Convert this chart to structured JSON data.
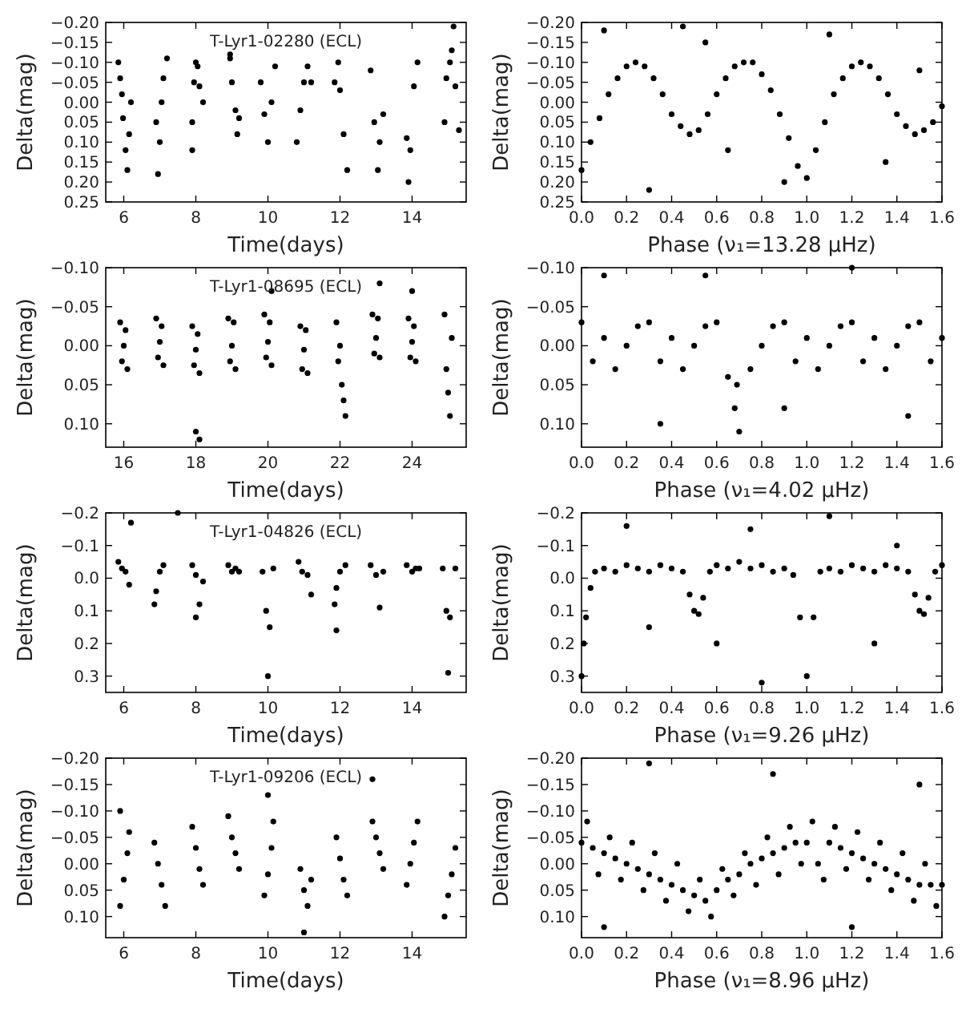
{
  "chart_data": [
    {
      "type": "scatter",
      "title": "T-Lyr1-02280 (ECL)",
      "xlabel": "Time(days)",
      "ylabel": "Delta(mag)",
      "marker": "circle",
      "xlim": [
        5.5,
        15.5
      ],
      "xticks": [
        6,
        8,
        10,
        12,
        14
      ],
      "ylim": [
        0.25,
        -0.2
      ],
      "yticks": [
        {
          "value": -0.2,
          "label": "−0.20"
        },
        {
          "value": -0.15,
          "label": "−0.15"
        },
        {
          "value": -0.1,
          "label": "−0.10"
        },
        {
          "value": -0.05,
          "label": "−0.05"
        },
        {
          "value": 0,
          "label": "0.00"
        },
        {
          "value": 0.05,
          "label": "0.05"
        },
        {
          "value": 0.1,
          "label": "0.10"
        },
        {
          "value": 0.15,
          "label": "0.15"
        },
        {
          "value": 0.2,
          "label": "0.20"
        },
        {
          "value": 0.25,
          "label": "0.25"
        }
      ],
      "series": [
        {
          "color": "#000000",
          "x": [
            5.85,
            5.9,
            5.95,
            5.98,
            6.05,
            6.1,
            6.15,
            6.2,
            6.9,
            6.95,
            7.0,
            7.05,
            7.1,
            7.2,
            7.9,
            7.95,
            8.0,
            8.05,
            8.1,
            8.2,
            8.95,
            9.0,
            9.1,
            9.15,
            9.2,
            9.8,
            9.9,
            10.0,
            10.1,
            10.2,
            10.8,
            10.9,
            11.0,
            11.1,
            11.2,
            11.85,
            11.95,
            12.0,
            12.1,
            12.2,
            12.85,
            12.95,
            13.05,
            13.1,
            13.2,
            13.85,
            13.9,
            13.95,
            14.05,
            14.15,
            14.9,
            14.95,
            15.05,
            15.1,
            15.2,
            15.3,
            7.9,
            8.95,
            15.15
          ],
          "values": [
            -0.1,
            -0.06,
            -0.02,
            0.04,
            0.12,
            0.17,
            0.08,
            0.0,
            0.05,
            0.18,
            0.1,
            0.0,
            -0.06,
            -0.11,
            0.05,
            -0.05,
            -0.1,
            -0.09,
            -0.04,
            0.0,
            -0.11,
            -0.05,
            0.02,
            0.08,
            0.04,
            -0.05,
            0.03,
            0.1,
            0.0,
            -0.09,
            0.1,
            0.02,
            -0.05,
            -0.09,
            -0.05,
            -0.05,
            -0.1,
            -0.03,
            0.08,
            0.17,
            -0.08,
            0.05,
            0.17,
            0.1,
            0.03,
            0.09,
            0.2,
            0.12,
            -0.04,
            -0.1,
            0.05,
            -0.06,
            -0.1,
            -0.13,
            -0.04,
            0.07,
            0.12,
            -0.12,
            -0.19
          ]
        }
      ]
    },
    {
      "type": "scatter",
      "xlabel": "Phase (ν₁=13.28 μHz)",
      "ylabel": "Delta(mag)",
      "marker": "circle",
      "xlim": [
        0,
        1.6
      ],
      "xticks": [
        {
          "value": 0,
          "label": "0.0"
        },
        {
          "value": 0.2,
          "label": "0.2"
        },
        {
          "value": 0.4,
          "label": "0.4"
        },
        {
          "value": 0.6,
          "label": "0.6"
        },
        {
          "value": 0.8,
          "label": "0.8"
        },
        {
          "value": 1,
          "label": "1.0"
        },
        {
          "value": 1.2,
          "label": "1.2"
        },
        {
          "value": 1.4,
          "label": "1.4"
        },
        {
          "value": 1.6,
          "label": "1.6"
        }
      ],
      "ylim": [
        0.25,
        -0.2
      ],
      "yticks": [
        {
          "value": -0.2,
          "label": "−0.20"
        },
        {
          "value": -0.15,
          "label": "−0.15"
        },
        {
          "value": -0.1,
          "label": "−0.10"
        },
        {
          "value": -0.05,
          "label": "−0.05"
        },
        {
          "value": 0,
          "label": "0.00"
        },
        {
          "value": 0.05,
          "label": "0.05"
        },
        {
          "value": 0.1,
          "label": "0.10"
        },
        {
          "value": 0.15,
          "label": "0.15"
        },
        {
          "value": 0.2,
          "label": "0.20"
        },
        {
          "value": 0.25,
          "label": "0.25"
        }
      ],
      "series": [
        {
          "color": "#000000",
          "x": [
            0,
            0.04,
            0.08,
            0.12,
            0.16,
            0.2,
            0.24,
            0.28,
            0.32,
            0.36,
            0.4,
            0.44,
            0.48,
            0.52,
            0.56,
            0.6,
            0.64,
            0.68,
            0.72,
            0.76,
            0.8,
            0.84,
            0.88,
            0.92,
            0.96,
            1,
            1.04,
            1.08,
            1.12,
            1.16,
            1.2,
            1.24,
            1.28,
            1.32,
            1.36,
            1.4,
            1.44,
            1.48,
            1.52,
            1.56,
            1.6,
            0.1,
            0.3,
            0.45,
            0.55,
            0.65,
            0.9,
            1.1,
            1.35,
            1.5
          ],
          "values": [
            0.17,
            0.1,
            0.04,
            -0.02,
            -0.06,
            -0.09,
            -0.1,
            -0.09,
            -0.06,
            -0.02,
            0.03,
            0.06,
            0.08,
            0.07,
            0.03,
            -0.02,
            -0.06,
            -0.09,
            -0.1,
            -0.1,
            -0.07,
            -0.03,
            0.03,
            0.09,
            0.16,
            0.19,
            0.12,
            0.05,
            -0.02,
            -0.06,
            -0.09,
            -0.1,
            -0.09,
            -0.06,
            -0.02,
            0.03,
            0.06,
            0.08,
            0.07,
            0.05,
            0.01,
            -0.18,
            0.22,
            -0.19,
            -0.15,
            0.12,
            0.2,
            -0.17,
            0.15,
            -0.08
          ]
        }
      ]
    },
    {
      "type": "scatter",
      "title": "T-Lyr1-08695 (ECL)",
      "xlabel": "Time(days)",
      "ylabel": "Delta(mag)",
      "marker": "circle",
      "xlim": [
        15.5,
        25.5
      ],
      "xticks": [
        16,
        18,
        20,
        22,
        24
      ],
      "ylim": [
        0.13,
        -0.1
      ],
      "yticks": [
        {
          "value": -0.1,
          "label": "−0.10"
        },
        {
          "value": -0.05,
          "label": "−0.05"
        },
        {
          "value": 0,
          "label": "0.00"
        },
        {
          "value": 0.05,
          "label": "0.05"
        },
        {
          "value": 0.1,
          "label": "0.10"
        }
      ],
      "series": [
        {
          "color": "#000000",
          "x": [
            15.9,
            15.95,
            16,
            16.05,
            16.1,
            16.9,
            16.95,
            17,
            17.05,
            17.1,
            17.9,
            17.95,
            18,
            18.05,
            18.1,
            18.9,
            18.95,
            19,
            19.05,
            19.1,
            19.9,
            19.95,
            20,
            20.05,
            20.1,
            20.9,
            20.95,
            21,
            21.05,
            21.1,
            21.9,
            21.95,
            22,
            22.05,
            22.1,
            22.15,
            22.9,
            22.95,
            23,
            23.05,
            23.1,
            23.9,
            23.95,
            24,
            24.05,
            24.1,
            24.9,
            24.95,
            25,
            25.05,
            25.1,
            18,
            18.1,
            20.1,
            23.1,
            24
          ],
          "values": [
            -0.03,
            0.02,
            0.0,
            -0.02,
            0.03,
            -0.035,
            0.015,
            -0.005,
            -0.025,
            0.025,
            -0.025,
            0.025,
            0.005,
            -0.015,
            0.035,
            -0.035,
            0.02,
            0.0,
            -0.03,
            0.03,
            -0.04,
            0.015,
            -0.005,
            -0.03,
            0.025,
            -0.025,
            0.03,
            0.005,
            -0.02,
            0.035,
            -0.03,
            0.02,
            0.0,
            0.05,
            0.07,
            0.09,
            -0.04,
            0.01,
            -0.01,
            -0.035,
            0.015,
            -0.035,
            0.015,
            -0.005,
            -0.025,
            0.02,
            -0.04,
            0.03,
            0.06,
            0.09,
            -0.01,
            0.11,
            0.12,
            -0.07,
            -0.08,
            -0.07
          ]
        }
      ]
    },
    {
      "type": "scatter",
      "xlabel": "Phase (ν₁=4.02 μHz)",
      "ylabel": "Delta(mag)",
      "marker": "circle",
      "xlim": [
        0,
        1.6
      ],
      "xticks": [
        {
          "value": 0,
          "label": "0.0"
        },
        {
          "value": 0.2,
          "label": "0.2"
        },
        {
          "value": 0.4,
          "label": "0.4"
        },
        {
          "value": 0.6,
          "label": "0.6"
        },
        {
          "value": 0.8,
          "label": "0.8"
        },
        {
          "value": 1,
          "label": "1.0"
        },
        {
          "value": 1.2,
          "label": "1.2"
        },
        {
          "value": 1.4,
          "label": "1.4"
        },
        {
          "value": 1.6,
          "label": "1.6"
        }
      ],
      "ylim": [
        0.13,
        -0.1
      ],
      "yticks": [
        {
          "value": -0.1,
          "label": "−0.10"
        },
        {
          "value": -0.05,
          "label": "−0.05"
        },
        {
          "value": 0,
          "label": "0.00"
        },
        {
          "value": 0.05,
          "label": "0.05"
        },
        {
          "value": 0.1,
          "label": "0.10"
        }
      ],
      "series": [
        {
          "color": "#000000",
          "x": [
            0,
            0.05,
            0.1,
            0.15,
            0.2,
            0.25,
            0.3,
            0.35,
            0.4,
            0.45,
            0.5,
            0.55,
            0.6,
            0.65,
            0.7,
            0.75,
            0.8,
            0.85,
            0.9,
            0.95,
            1,
            1.05,
            1.1,
            1.15,
            1.2,
            1.25,
            1.3,
            1.35,
            1.4,
            1.45,
            1.5,
            1.55,
            1.6,
            0.68,
            0.69,
            0.1,
            0.35,
            0.55,
            0.9,
            1.2,
            1.45
          ],
          "values": [
            -0.03,
            0.02,
            -0.01,
            0.03,
            0.0,
            -0.025,
            -0.03,
            0.02,
            -0.01,
            0.03,
            0.0,
            -0.025,
            -0.03,
            0.04,
            0.11,
            0.03,
            0.0,
            -0.025,
            -0.03,
            0.02,
            -0.01,
            0.03,
            0.0,
            -0.025,
            -0.03,
            0.02,
            -0.01,
            0.03,
            0.0,
            -0.025,
            -0.03,
            0.02,
            -0.01,
            0.08,
            0.05,
            -0.09,
            0.1,
            -0.09,
            0.08,
            -0.1,
            0.09
          ]
        }
      ]
    },
    {
      "type": "scatter",
      "title": "T-Lyr1-04826 (ECL)",
      "xlabel": "Time(days)",
      "ylabel": "Delta(mag)",
      "marker": "circle",
      "xlim": [
        5.5,
        15.5
      ],
      "xticks": [
        6,
        8,
        10,
        12,
        14
      ],
      "ylim": [
        0.35,
        -0.2
      ],
      "yticks": [
        {
          "value": -0.2,
          "label": "−0.2"
        },
        {
          "value": -0.1,
          "label": "−0.1"
        },
        {
          "value": 0,
          "label": "0.0"
        },
        {
          "value": 0.1,
          "label": "0.1"
        },
        {
          "value": 0.2,
          "label": "0.2"
        },
        {
          "value": 0.3,
          "label": "0.3"
        }
      ],
      "series": [
        {
          "color": "#000000",
          "x": [
            5.85,
            5.95,
            6.05,
            6.15,
            6.85,
            6.9,
            7.0,
            7.1,
            7.9,
            8.0,
            8.1,
            8.2,
            8.9,
            9.0,
            9.1,
            9.2,
            9.85,
            9.95,
            10.0,
            10.05,
            10.15,
            10.85,
            10.95,
            11.1,
            11.2,
            11.85,
            11.9,
            12.0,
            12.15,
            12.85,
            13.0,
            13.1,
            13.2,
            13.85,
            14.0,
            14.1,
            14.2,
            14.85,
            14.95,
            15.0,
            15.05,
            15.2,
            6.2,
            7.5,
            8.0,
            11.9
          ],
          "values": [
            -0.05,
            -0.03,
            -0.02,
            0.02,
            0.08,
            0.04,
            -0.02,
            -0.04,
            -0.04,
            -0.01,
            0.08,
            0.01,
            -0.04,
            -0.02,
            -0.03,
            -0.02,
            -0.02,
            0.1,
            0.3,
            0.15,
            -0.03,
            -0.05,
            -0.02,
            -0.01,
            0.05,
            0.08,
            0.03,
            -0.02,
            -0.04,
            -0.04,
            -0.01,
            0.09,
            -0.02,
            -0.04,
            -0.02,
            -0.03,
            -0.03,
            -0.03,
            0.1,
            0.29,
            0.12,
            -0.03,
            -0.17,
            -0.2,
            0.12,
            0.16
          ]
        }
      ]
    },
    {
      "type": "scatter",
      "xlabel": "Phase (ν₁=9.26 μHz)",
      "ylabel": "Delta(mag)",
      "marker": "circle",
      "xlim": [
        0,
        1.6
      ],
      "xticks": [
        {
          "value": 0,
          "label": "0.0"
        },
        {
          "value": 0.2,
          "label": "0.2"
        },
        {
          "value": 0.4,
          "label": "0.4"
        },
        {
          "value": 0.6,
          "label": "0.6"
        },
        {
          "value": 0.8,
          "label": "0.8"
        },
        {
          "value": 1,
          "label": "1.0"
        },
        {
          "value": 1.2,
          "label": "1.2"
        },
        {
          "value": 1.4,
          "label": "1.4"
        },
        {
          "value": 1.6,
          "label": "1.6"
        }
      ],
      "ylim": [
        0.35,
        -0.2
      ],
      "yticks": [
        {
          "value": -0.2,
          "label": "−0.2"
        },
        {
          "value": -0.1,
          "label": "−0.1"
        },
        {
          "value": 0,
          "label": "0.0"
        },
        {
          "value": 0.1,
          "label": "0.1"
        },
        {
          "value": 0.2,
          "label": "0.2"
        },
        {
          "value": 0.3,
          "label": "0.3"
        }
      ],
      "series": [
        {
          "color": "#000000",
          "x": [
            0,
            0.01,
            0.02,
            0.04,
            0.06,
            0.1,
            0.15,
            0.2,
            0.25,
            0.3,
            0.35,
            0.4,
            0.45,
            0.48,
            0.5,
            0.52,
            0.54,
            0.57,
            0.6,
            0.65,
            0.7,
            0.75,
            0.8,
            0.85,
            0.9,
            0.94,
            0.97,
            1.0,
            1.03,
            1.06,
            1.1,
            1.15,
            1.2,
            1.25,
            1.3,
            1.35,
            1.4,
            1.45,
            1.48,
            1.5,
            1.52,
            1.54,
            1.57,
            1.6,
            0.2,
            0.3,
            0.6,
            0.75,
            1.1,
            1.3,
            1.4,
            0.8
          ],
          "values": [
            0.3,
            0.2,
            0.12,
            0.03,
            -0.02,
            -0.03,
            -0.02,
            -0.04,
            -0.03,
            -0.02,
            -0.04,
            -0.03,
            -0.02,
            0.05,
            0.1,
            0.11,
            0.06,
            -0.02,
            -0.04,
            -0.03,
            -0.05,
            -0.03,
            -0.04,
            -0.02,
            -0.03,
            -0.01,
            0.12,
            0.3,
            0.12,
            -0.02,
            -0.03,
            -0.02,
            -0.04,
            -0.03,
            -0.02,
            -0.04,
            -0.03,
            -0.02,
            0.05,
            0.1,
            0.11,
            0.06,
            -0.02,
            -0.04,
            -0.16,
            0.15,
            0.2,
            -0.15,
            -0.19,
            0.2,
            -0.1,
            0.32
          ]
        }
      ]
    },
    {
      "type": "scatter",
      "title": "T-Lyr1-09206 (ECL)",
      "xlabel": "Time(days)",
      "ylabel": "Delta(mag)",
      "marker": "circle",
      "xlim": [
        5.5,
        15.5
      ],
      "xticks": [
        6,
        8,
        10,
        12,
        14
      ],
      "ylim": [
        0.14,
        -0.2
      ],
      "yticks": [
        {
          "value": -0.2,
          "label": "−0.20"
        },
        {
          "value": -0.15,
          "label": "−0.15"
        },
        {
          "value": -0.1,
          "label": "−0.10"
        },
        {
          "value": -0.05,
          "label": "−0.05"
        },
        {
          "value": 0,
          "label": "0.00"
        },
        {
          "value": 0.05,
          "label": "0.05"
        },
        {
          "value": 0.1,
          "label": "0.10"
        }
      ],
      "series": [
        {
          "color": "#000000",
          "x": [
            5.9,
            6.0,
            6.1,
            6.15,
            6.85,
            6.95,
            7.05,
            7.15,
            7.9,
            8.0,
            8.1,
            8.2,
            8.9,
            9.0,
            9.1,
            9.2,
            9.9,
            10.0,
            10.1,
            10.15,
            10.9,
            11.0,
            11.1,
            11.2,
            11.9,
            12.0,
            12.1,
            12.2,
            12.9,
            13.0,
            13.1,
            13.2,
            13.85,
            13.95,
            14.05,
            14.15,
            14.9,
            15.0,
            15.1,
            15.2,
            5.9,
            10.0,
            11.0,
            12.9
          ],
          "values": [
            0.08,
            0.03,
            -0.02,
            -0.06,
            -0.04,
            0.0,
            0.04,
            0.08,
            -0.07,
            -0.03,
            0.01,
            0.04,
            -0.09,
            -0.05,
            -0.02,
            0.01,
            0.06,
            0.02,
            -0.03,
            -0.08,
            0.01,
            0.05,
            0.08,
            0.03,
            -0.05,
            -0.01,
            0.03,
            0.06,
            -0.08,
            -0.05,
            -0.02,
            0.01,
            0.04,
            0.0,
            -0.04,
            -0.08,
            0.1,
            0.06,
            0.02,
            -0.03,
            -0.1,
            -0.13,
            0.13,
            -0.16
          ]
        }
      ]
    },
    {
      "type": "scatter",
      "xlabel": "Phase (ν₁=8.96 μHz)",
      "ylabel": "Delta(mag)",
      "marker": "circle",
      "xlim": [
        0,
        1.6
      ],
      "xticks": [
        {
          "value": 0,
          "label": "0.0"
        },
        {
          "value": 0.2,
          "label": "0.2"
        },
        {
          "value": 0.4,
          "label": "0.4"
        },
        {
          "value": 0.6,
          "label": "0.6"
        },
        {
          "value": 0.8,
          "label": "0.8"
        },
        {
          "value": 1,
          "label": "1.0"
        },
        {
          "value": 1.2,
          "label": "1.2"
        },
        {
          "value": 1.4,
          "label": "1.4"
        },
        {
          "value": 1.6,
          "label": "1.6"
        }
      ],
      "ylim": [
        0.14,
        -0.2
      ],
      "yticks": [
        {
          "value": -0.2,
          "label": "−0.20"
        },
        {
          "value": -0.15,
          "label": "−0.15"
        },
        {
          "value": -0.1,
          "label": "−0.10"
        },
        {
          "value": -0.05,
          "label": "−0.05"
        },
        {
          "value": 0,
          "label": "0.00"
        },
        {
          "value": 0.05,
          "label": "0.05"
        },
        {
          "value": 0.1,
          "label": "0.10"
        }
      ],
      "series": [
        {
          "color": "#000000",
          "x": [
            0,
            0.025,
            0.05,
            0.075,
            0.1,
            0.125,
            0.15,
            0.175,
            0.2,
            0.225,
            0.25,
            0.275,
            0.3,
            0.325,
            0.35,
            0.375,
            0.4,
            0.425,
            0.45,
            0.475,
            0.5,
            0.525,
            0.55,
            0.575,
            0.6,
            0.625,
            0.65,
            0.675,
            0.7,
            0.725,
            0.75,
            0.775,
            0.8,
            0.825,
            0.85,
            0.875,
            0.9,
            0.925,
            0.95,
            0.975,
            1.0,
            1.025,
            1.05,
            1.075,
            1.1,
            1.125,
            1.15,
            1.175,
            1.2,
            1.225,
            1.25,
            1.275,
            1.3,
            1.325,
            1.35,
            1.375,
            1.4,
            1.425,
            1.45,
            1.475,
            1.5,
            1.525,
            1.55,
            1.575,
            1.6,
            0.3,
            0.85,
            1.2,
            0.1,
            1.5
          ],
          "values": [
            -0.04,
            -0.08,
            -0.03,
            0.02,
            -0.02,
            -0.05,
            -0.01,
            0.03,
            0.0,
            -0.04,
            0.01,
            0.05,
            0.02,
            -0.02,
            0.03,
            0.07,
            0.04,
            0.0,
            0.05,
            0.09,
            0.06,
            0.03,
            0.07,
            0.1,
            0.05,
            0.01,
            0.03,
            0.06,
            0.02,
            -0.02,
            0.0,
            0.04,
            -0.01,
            -0.05,
            -0.02,
            0.02,
            -0.03,
            -0.07,
            -0.04,
            0.0,
            -0.04,
            -0.08,
            0.0,
            0.03,
            -0.04,
            -0.07,
            -0.03,
            0.01,
            -0.02,
            -0.06,
            -0.01,
            0.03,
            0.0,
            -0.04,
            0.01,
            0.05,
            0.02,
            -0.02,
            0.03,
            0.07,
            0.04,
            0.0,
            0.04,
            0.08,
            0.04,
            -0.19,
            -0.17,
            0.12,
            0.12,
            -0.15
          ]
        }
      ]
    }
  ]
}
